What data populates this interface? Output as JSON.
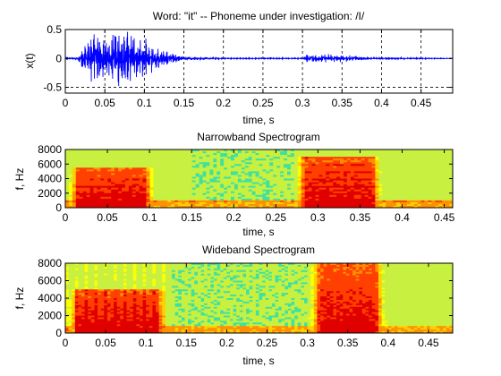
{
  "figure": {
    "panels": [
      {
        "id": "waveform",
        "title": "Word: \"it\" --  Phoneme under investigation: /I/",
        "xlabel": "time, s",
        "ylabel": "x(t)",
        "xticks": [
          "0",
          "0.05",
          "0.1",
          "0.15",
          "0.2",
          "0.25",
          "0.3",
          "0.35",
          "0.4",
          "0.45"
        ],
        "yticks": [
          "0.5",
          "0",
          "-0.5"
        ]
      },
      {
        "id": "narrowband",
        "title": "Narrowband Spectrogram",
        "xlabel": "time, s",
        "ylabel": "f, Hz",
        "xticks": [
          "0",
          "0.05",
          "0.1",
          "0.15",
          "0.2",
          "0.25",
          "0.3",
          "0.35",
          "0.4",
          "0.45"
        ],
        "yticks": [
          "8000",
          "6000",
          "4000",
          "2000",
          "0"
        ]
      },
      {
        "id": "wideband",
        "title": "Wideband Spectrogram",
        "xlabel": "time, s",
        "ylabel": "f, Hz",
        "xticks": [
          "0",
          "0.05",
          "0.1",
          "0.15",
          "0.2",
          "0.25",
          "0.3",
          "0.35",
          "0.4",
          "0.45"
        ],
        "yticks": [
          "8000",
          "6000",
          "4000",
          "2000",
          "0"
        ]
      }
    ]
  },
  "chart_data": [
    {
      "type": "line",
      "title": "Word: \"it\" --  Phoneme under investigation: /I/",
      "xlabel": "time, s",
      "ylabel": "x(t)",
      "xlim": [
        0,
        0.49
      ],
      "ylim": [
        -0.6,
        0.5
      ],
      "xticks": [
        0,
        0.05,
        0.1,
        0.15,
        0.2,
        0.25,
        0.3,
        0.35,
        0.4,
        0.45
      ],
      "yticks": [
        0.5,
        0,
        -0.5
      ],
      "grid": "dashed vertical at x ticks",
      "reference_lines": [
        {
          "orientation": "horizontal",
          "y": -0.5,
          "style": "dashed"
        }
      ],
      "series_color": "#0000ff",
      "envelope": [
        {
          "x": 0.0,
          "amp": 0.01
        },
        {
          "x": 0.015,
          "amp": 0.03
        },
        {
          "x": 0.025,
          "amp": 0.25
        },
        {
          "x": 0.035,
          "amp": 0.45
        },
        {
          "x": 0.05,
          "amp": 0.5
        },
        {
          "x": 0.07,
          "amp": 0.5
        },
        {
          "x": 0.09,
          "amp": 0.42
        },
        {
          "x": 0.11,
          "amp": 0.3
        },
        {
          "x": 0.13,
          "amp": 0.12
        },
        {
          "x": 0.15,
          "amp": 0.04
        },
        {
          "x": 0.2,
          "amp": 0.01
        },
        {
          "x": 0.3,
          "amp": 0.01
        },
        {
          "x": 0.305,
          "amp": 0.07
        },
        {
          "x": 0.33,
          "amp": 0.08
        },
        {
          "x": 0.36,
          "amp": 0.06
        },
        {
          "x": 0.38,
          "amp": 0.02
        },
        {
          "x": 0.49,
          "amp": 0.005
        }
      ]
    },
    {
      "type": "heatmap",
      "title": "Narrowband Spectrogram",
      "xlabel": "time, s",
      "ylabel": "f, Hz",
      "xlim": [
        0,
        0.46
      ],
      "ylim": [
        0,
        8000
      ],
      "xticks": [
        0,
        0.05,
        0.1,
        0.15,
        0.2,
        0.25,
        0.3,
        0.35,
        0.4,
        0.45
      ],
      "yticks": [
        8000,
        6000,
        4000,
        2000,
        0
      ],
      "colormap": [
        "#00d0d8",
        "#40e0a0",
        "#c8f040",
        "#ffff00",
        "#ffd000",
        "#ff9000",
        "#ff4000",
        "#e00000"
      ],
      "energy_regions": [
        {
          "t": [
            0.0,
            0.11
          ],
          "f": [
            0,
            5500
          ],
          "level": "high"
        },
        {
          "t": [
            0.27,
            0.38
          ],
          "f": [
            0,
            7000
          ],
          "level": "high"
        },
        {
          "t": [
            0.15,
            0.27
          ],
          "f": [
            0,
            8000
          ],
          "level": "low"
        }
      ]
    },
    {
      "type": "heatmap",
      "title": "Wideband Spectrogram",
      "xlabel": "time, s",
      "ylabel": "f, Hz",
      "xlim": [
        0,
        0.48
      ],
      "ylim": [
        0,
        8000
      ],
      "xticks": [
        0,
        0.05,
        0.1,
        0.15,
        0.2,
        0.25,
        0.3,
        0.35,
        0.4,
        0.45
      ],
      "yticks": [
        8000,
        6000,
        4000,
        2000,
        0
      ],
      "colormap": [
        "#00d0d8",
        "#40e0a0",
        "#c8f040",
        "#ffff00",
        "#ffd000",
        "#ff9000",
        "#ff4000",
        "#e00000"
      ],
      "energy_regions": [
        {
          "t": [
            0.0,
            0.13
          ],
          "f": [
            0,
            5000
          ],
          "level": "high"
        },
        {
          "t": [
            0.3,
            0.4
          ],
          "f": [
            0,
            8000
          ],
          "level": "high"
        },
        {
          "t": [
            0.13,
            0.3
          ],
          "f": [
            0,
            8000
          ],
          "level": "low"
        }
      ]
    }
  ]
}
